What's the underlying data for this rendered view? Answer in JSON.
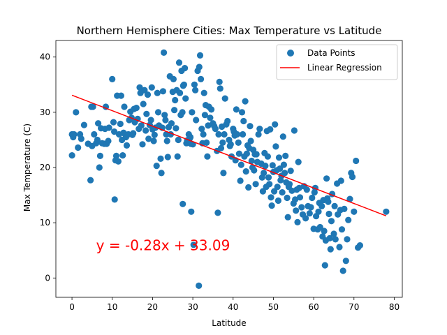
{
  "chart_data": {
    "type": "scatter",
    "title": "Northern Hemisphere Cities: Max Temperature vs Latitude",
    "xlabel": "Latitude",
    "ylabel": "Max Temperature (C)",
    "xlim": [
      -4,
      82
    ],
    "ylim": [
      -3.5,
      43
    ],
    "x_ticks": [
      0,
      10,
      20,
      30,
      40,
      50,
      60,
      70,
      80
    ],
    "y_ticks": [
      0,
      10,
      20,
      30,
      40
    ],
    "grid": false,
    "legend": {
      "placement": "top-right",
      "entries": [
        "Data Points",
        "Linear Regression"
      ]
    },
    "colors": {
      "points": "#1f77b4",
      "regression": "#ff0000"
    },
    "regression": {
      "slope": -0.28,
      "intercept": 33.09,
      "x_range": [
        0,
        78
      ],
      "equation_text": "y = -0.28x + 33.09",
      "annotation_at": [
        6,
        5
      ]
    },
    "series": [
      {
        "name": "Data Points",
        "points": [
          [
            0,
            26
          ],
          [
            0,
            22.2
          ],
          [
            0.3,
            25.5
          ],
          [
            0.5,
            26
          ],
          [
            1,
            30
          ],
          [
            1.5,
            23.6
          ],
          [
            2,
            26
          ],
          [
            2.3,
            25.2
          ],
          [
            3,
            27.7
          ],
          [
            4,
            24.3
          ],
          [
            4.6,
            17.7
          ],
          [
            4.8,
            31
          ],
          [
            5,
            23.9
          ],
          [
            5.2,
            31
          ],
          [
            5.5,
            26
          ],
          [
            6,
            24.4
          ],
          [
            6.3,
            25
          ],
          [
            6.5,
            28
          ],
          [
            6.8,
            20
          ],
          [
            7,
            22.1
          ],
          [
            7.2,
            27.1
          ],
          [
            7.5,
            24.4
          ],
          [
            8,
            24.3
          ],
          [
            8.2,
            27
          ],
          [
            8.4,
            31
          ],
          [
            8.6,
            24.3
          ],
          [
            9,
            24.8
          ],
          [
            9.2,
            27.2
          ],
          [
            10,
            36
          ],
          [
            10.3,
            28.2
          ],
          [
            10.5,
            26.5
          ],
          [
            10.6,
            14.2
          ],
          [
            10.8,
            21.3
          ],
          [
            11,
            22.1
          ],
          [
            11.2,
            33
          ],
          [
            11.5,
            21.1
          ],
          [
            11.7,
            26
          ],
          [
            12,
            27.9
          ],
          [
            12.2,
            33
          ],
          [
            12.4,
            25
          ],
          [
            12.6,
            22.2
          ],
          [
            12.8,
            26.3
          ],
          [
            13,
            31
          ],
          [
            13.2,
            26
          ],
          [
            13.4,
            25.5
          ],
          [
            13.6,
            24
          ],
          [
            14,
            26
          ],
          [
            14.2,
            28.6
          ],
          [
            14.5,
            30.1
          ],
          [
            14.8,
            29
          ],
          [
            15,
            25.9
          ],
          [
            15.2,
            26.2
          ],
          [
            15.4,
            30.6
          ],
          [
            15.6,
            28.2
          ],
          [
            16,
            30.8
          ],
          [
            16.3,
            28.8
          ],
          [
            16.6,
            27
          ],
          [
            16.8,
            34.5
          ],
          [
            17,
            33.5
          ],
          [
            17.2,
            27.6
          ],
          [
            17.5,
            24.2
          ],
          [
            17.7,
            31.5
          ],
          [
            18,
            34
          ],
          [
            18.3,
            26.7
          ],
          [
            18.5,
            29.7
          ],
          [
            18.8,
            33.2
          ],
          [
            19,
            25.2
          ],
          [
            19.3,
            27.7
          ],
          [
            19.6,
            28.6
          ],
          [
            19.8,
            34.5
          ],
          [
            20,
            26.9
          ],
          [
            20.3,
            24.8
          ],
          [
            20.5,
            25.9
          ],
          [
            20.7,
            27.2
          ],
          [
            21,
            20.3
          ],
          [
            21.2,
            33.5
          ],
          [
            21.4,
            30
          ],
          [
            21.6,
            27.6
          ],
          [
            22,
            21.6
          ],
          [
            22.2,
            19
          ],
          [
            22.4,
            27.2
          ],
          [
            22.6,
            33.8
          ],
          [
            22.8,
            40.8
          ],
          [
            23,
            29.5
          ],
          [
            23.2,
            28.6
          ],
          [
            23.4,
            26
          ],
          [
            23.6,
            24.8
          ],
          [
            23.8,
            21.9
          ],
          [
            24,
            27.3
          ],
          [
            24.3,
            36.5
          ],
          [
            24.5,
            26
          ],
          [
            24.7,
            28
          ],
          [
            25,
            33.7
          ],
          [
            25.2,
            36
          ],
          [
            25.4,
            30.4
          ],
          [
            25.6,
            32.2
          ],
          [
            25.8,
            27.1
          ],
          [
            26,
            34
          ],
          [
            26.2,
            22
          ],
          [
            26.4,
            25
          ],
          [
            26.6,
            39
          ],
          [
            26.8,
            33.5
          ],
          [
            27,
            29.5
          ],
          [
            27.2,
            37.5
          ],
          [
            27.4,
            30
          ],
          [
            27.5,
            13.4
          ],
          [
            27.6,
            34.8
          ],
          [
            27.8,
            35
          ],
          [
            28,
            38
          ],
          [
            28.2,
            32.5
          ],
          [
            28.4,
            24.4
          ],
          [
            28.6,
            24.9
          ],
          [
            28.8,
            25
          ],
          [
            29,
            26
          ],
          [
            29.2,
            25.2
          ],
          [
            29.4,
            25.5
          ],
          [
            29.5,
            24.3
          ],
          [
            29.6,
            12
          ],
          [
            29.8,
            30
          ],
          [
            30,
            24.2
          ],
          [
            30.2,
            6
          ],
          [
            30.4,
            35
          ],
          [
            30.6,
            34
          ],
          [
            30.8,
            28.6
          ],
          [
            31.2,
            37.5
          ],
          [
            31.5,
            -1.4
          ],
          [
            31.6,
            38.2
          ],
          [
            31.8,
            40.3
          ],
          [
            32,
            36
          ],
          [
            32.2,
            27
          ],
          [
            32.4,
            24.4
          ],
          [
            32.6,
            26
          ],
          [
            32.8,
            33.5
          ],
          [
            33,
            29.5
          ],
          [
            33.2,
            31.3
          ],
          [
            33.4,
            24.5
          ],
          [
            33.6,
            22
          ],
          [
            33.8,
            27.6
          ],
          [
            34,
            31
          ],
          [
            34.3,
            29
          ],
          [
            34.6,
            30.5
          ],
          [
            35,
            28
          ],
          [
            35.3,
            27.5
          ],
          [
            35.6,
            27
          ],
          [
            36,
            23
          ],
          [
            36.2,
            11.8
          ],
          [
            36.4,
            26
          ],
          [
            36.6,
            35.5
          ],
          [
            36.8,
            34.3
          ],
          [
            37,
            23.5
          ],
          [
            37.2,
            27.4
          ],
          [
            37.4,
            24.5
          ],
          [
            37.6,
            19
          ],
          [
            37.8,
            26
          ],
          [
            38,
            32.5
          ],
          [
            38.3,
            27.8
          ],
          [
            38.6,
            28.4
          ],
          [
            39,
            25
          ],
          [
            39.2,
            23.9
          ],
          [
            39.4,
            24.2
          ],
          [
            39.6,
            22
          ],
          [
            40,
            27
          ],
          [
            40.2,
            26.5
          ],
          [
            40.4,
            25.8
          ],
          [
            40.6,
            21.3
          ],
          [
            40.8,
            30.5
          ],
          [
            41,
            26
          ],
          [
            41.3,
            24.5
          ],
          [
            41.5,
            22.5
          ],
          [
            41.8,
            17.6
          ],
          [
            42,
            20.5
          ],
          [
            42.2,
            30
          ],
          [
            42.4,
            26
          ],
          [
            42.6,
            28.4
          ],
          [
            42.8,
            22
          ],
          [
            43,
            32
          ],
          [
            43.2,
            19.3
          ],
          [
            43.4,
            22.5
          ],
          [
            43.6,
            24
          ],
          [
            43.8,
            16.4
          ],
          [
            44,
            23.5
          ],
          [
            44.2,
            27.5
          ],
          [
            44.4,
            24.8
          ],
          [
            44.6,
            21.2
          ],
          [
            44.8,
            20
          ],
          [
            45,
            23.2
          ],
          [
            45.2,
            19.5
          ],
          [
            45.4,
            22.4
          ],
          [
            45.6,
            17
          ],
          [
            45.8,
            22.4
          ],
          [
            46,
            21
          ],
          [
            46.3,
            26
          ],
          [
            46.6,
            27
          ],
          [
            47,
            20.7
          ],
          [
            47.2,
            18.2
          ],
          [
            47.4,
            15.7
          ],
          [
            47.6,
            19
          ],
          [
            47.8,
            22.6
          ],
          [
            48,
            20.3
          ],
          [
            48.2,
            16.5
          ],
          [
            48.4,
            26.6
          ],
          [
            48.6,
            22
          ],
          [
            48.8,
            18.2
          ],
          [
            49,
            17
          ],
          [
            49.2,
            26.9
          ],
          [
            49.4,
            14.6
          ],
          [
            49.6,
            13.1
          ],
          [
            49.8,
            20.4
          ],
          [
            50,
            19.2
          ],
          [
            50.2,
            15.7
          ],
          [
            50.4,
            27.8
          ],
          [
            50.6,
            23.8
          ],
          [
            50.8,
            19.5
          ],
          [
            51,
            16.5
          ],
          [
            51.2,
            14
          ],
          [
            51.4,
            21.8
          ],
          [
            51.6,
            19.8
          ],
          [
            51.8,
            17.7
          ],
          [
            52,
            18.5
          ],
          [
            52.2,
            15.5
          ],
          [
            52.4,
            25.6
          ],
          [
            52.6,
            20.5
          ],
          [
            52.8,
            19
          ],
          [
            53,
            22.1
          ],
          [
            53.2,
            17.3
          ],
          [
            53.4,
            14.5
          ],
          [
            53.6,
            11
          ],
          [
            53.8,
            16.5
          ],
          [
            54,
            17
          ],
          [
            54.3,
            19.4
          ],
          [
            54.6,
            15.8
          ],
          [
            55,
            13.5
          ],
          [
            55.2,
            26.7
          ],
          [
            55.4,
            14.2
          ],
          [
            55.6,
            12.2
          ],
          [
            55.8,
            16
          ],
          [
            56,
            10.1
          ],
          [
            56.2,
            21
          ],
          [
            56.4,
            16.3
          ],
          [
            56.6,
            14.6
          ],
          [
            57,
            12.8
          ],
          [
            57.3,
            11.5
          ],
          [
            57.6,
            16.6
          ],
          [
            58,
            10.8
          ],
          [
            58.3,
            16
          ],
          [
            58.6,
            13
          ],
          [
            59,
            11.7
          ],
          [
            59.3,
            12.8
          ],
          [
            59.6,
            14.5
          ],
          [
            60,
            8.9
          ],
          [
            60.2,
            15.5
          ],
          [
            60.4,
            16.3
          ],
          [
            60.6,
            11.2
          ],
          [
            61,
            8.8
          ],
          [
            61.2,
            12
          ],
          [
            61.4,
            13.6
          ],
          [
            61.6,
            9.2
          ],
          [
            62,
            13
          ],
          [
            62.2,
            7.5
          ],
          [
            62.4,
            14.1
          ],
          [
            62.6,
            8.5
          ],
          [
            62.8,
            2.3
          ],
          [
            63,
            6.8
          ],
          [
            63.2,
            18
          ],
          [
            63.4,
            14.4
          ],
          [
            63.6,
            13.8
          ],
          [
            63.8,
            11.6
          ],
          [
            64,
            7.2
          ],
          [
            64.2,
            5.2
          ],
          [
            64.4,
            10.3
          ],
          [
            64.6,
            15.2
          ],
          [
            65,
            8
          ],
          [
            65.2,
            13
          ],
          [
            65.4,
            7
          ],
          [
            65.8,
            17.1
          ],
          [
            66,
            11.5
          ],
          [
            66.4,
            5.6
          ],
          [
            66.6,
            12.3
          ],
          [
            66.8,
            17.6
          ],
          [
            67,
            8.8
          ],
          [
            67.3,
            1.3
          ],
          [
            67.6,
            12.5
          ],
          [
            68,
            3.1
          ],
          [
            68.3,
            7
          ],
          [
            68.6,
            10.5
          ],
          [
            69,
            14.3
          ],
          [
            69.3,
            19
          ],
          [
            69.6,
            18.3
          ],
          [
            70,
            12
          ],
          [
            70.5,
            21.2
          ],
          [
            71,
            5.5
          ],
          [
            71.5,
            5.9
          ],
          [
            78,
            12
          ]
        ]
      }
    ]
  }
}
